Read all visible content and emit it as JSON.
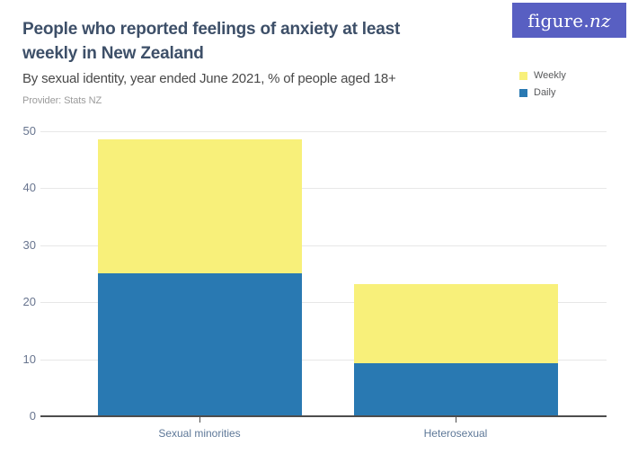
{
  "header": {
    "title": "People who reported feelings of anxiety at least weekly in New Zealand",
    "subtitle": "By sexual identity, year ended June 2021, % of people aged 18+",
    "provider": "Provider: Stats NZ"
  },
  "logo": {
    "text": "figure.nz",
    "background_color": "#585fc2",
    "text_color": "#ffffff"
  },
  "chart_data": {
    "type": "bar",
    "stacked": true,
    "title": "People who reported feelings of anxiety at least weekly in New Zealand",
    "subtitle": "By sexual identity, year ended June 2021, % of people aged 18+",
    "categories": [
      "Sexual minorities",
      "Heterosexual"
    ],
    "series": [
      {
        "name": "Daily",
        "color": "#2979b2",
        "values": [
          25.1,
          9.3
        ]
      },
      {
        "name": "Weekly",
        "color": "#f8f07a",
        "values": [
          23.5,
          13.9
        ]
      }
    ],
    "stack_totals": [
      48.6,
      23.2
    ],
    "xlabel": "",
    "ylabel": "% of people aged 18+",
    "ylim": [
      0,
      50
    ],
    "yticks": [
      0,
      10,
      20,
      30,
      40,
      50
    ],
    "grid": true,
    "legend_position": "top-right",
    "legend_order": [
      "Weekly",
      "Daily"
    ]
  },
  "colors": {
    "title": "#3d4f68",
    "subtitle": "#494949",
    "provider": "#9b9b9b",
    "gridline": "#e7e7e7",
    "axis_line": "#4d4d4d",
    "y_tick_label": "#68758f",
    "x_tick_label": "#5e7898",
    "legend_label": "#58595b"
  }
}
